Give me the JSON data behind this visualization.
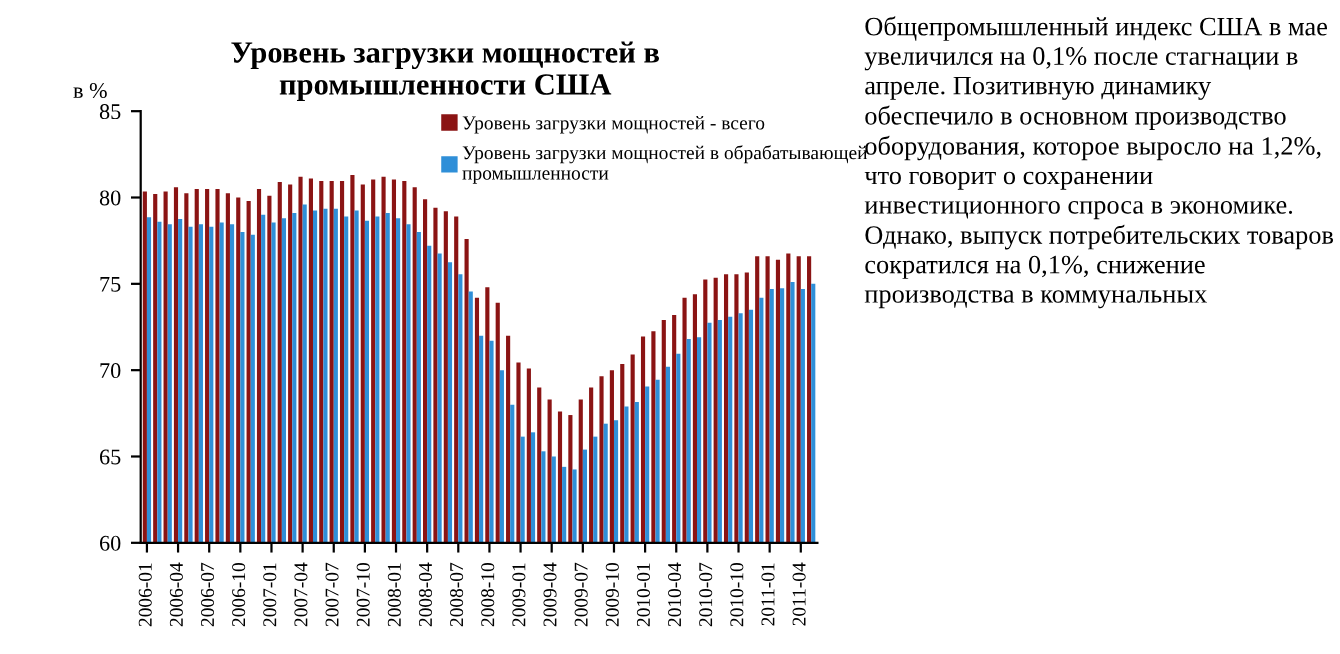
{
  "chart_data": {
    "type": "bar",
    "title": "Уровень загрузки мощностей в промышленности США",
    "ylabel": "в %",
    "categories": [
      "2006-01",
      null,
      null,
      "2006-04",
      null,
      null,
      "2006-07",
      null,
      null,
      "2006-10",
      null,
      null,
      "2007-01",
      null,
      null,
      "2007-04",
      null,
      null,
      "2007-07",
      null,
      null,
      "2007-10",
      null,
      null,
      "2008-01",
      null,
      null,
      "2008-04",
      null,
      null,
      "2008-07",
      null,
      null,
      "2008-10",
      null,
      null,
      "2009-01",
      null,
      null,
      "2009-04",
      null,
      null,
      "2009-07",
      null,
      null,
      "2009-10",
      null,
      null,
      "2010-01",
      null,
      null,
      "2010-04",
      null,
      null,
      "2010-07",
      null,
      null,
      "2010-10",
      null,
      null,
      "2011-01",
      null,
      null,
      "2011-04",
      null
    ],
    "series": [
      {
        "name": "Уровень загрузки мощностей - всего",
        "color": "#8b1414",
        "values": [
          80.35,
          80.2,
          80.35,
          80.6,
          80.25,
          80.5,
          80.5,
          80.5,
          80.25,
          80.0,
          79.8,
          80.5,
          80.1,
          80.9,
          80.75,
          81.2,
          81.1,
          80.95,
          80.95,
          80.95,
          81.3,
          80.75,
          81.05,
          81.2,
          81.05,
          80.95,
          80.6,
          79.9,
          79.4,
          79.2,
          78.9,
          77.6,
          74.2,
          74.8,
          73.9,
          72.0,
          70.45,
          70.1,
          69.0,
          68.3,
          67.6,
          67.4,
          68.3,
          69.0,
          69.65,
          70.0,
          70.35,
          70.9,
          71.95,
          72.25,
          72.9,
          73.2,
          74.2,
          74.4,
          75.25,
          75.35,
          75.55,
          75.55,
          75.65,
          76.6,
          76.6,
          76.4,
          76.75,
          76.6,
          76.6
        ]
      },
      {
        "name": "Уровень загрузки мощностей в обрабатывающей промышленности",
        "color": "#2f8fd8",
        "values": [
          78.85,
          78.6,
          78.45,
          78.75,
          78.3,
          78.45,
          78.3,
          78.55,
          78.45,
          78.0,
          77.85,
          79.0,
          78.55,
          78.8,
          79.1,
          79.6,
          79.25,
          79.35,
          79.35,
          78.9,
          79.25,
          78.65,
          78.9,
          79.1,
          78.8,
          78.45,
          78.0,
          77.2,
          76.75,
          76.25,
          75.55,
          74.55,
          72.0,
          71.7,
          70.0,
          68.0,
          66.15,
          66.4,
          65.3,
          65.0,
          64.4,
          64.25,
          65.4,
          66.15,
          66.9,
          67.1,
          67.9,
          68.15,
          69.05,
          69.45,
          70.2,
          70.95,
          71.8,
          71.9,
          72.75,
          72.9,
          73.1,
          73.3,
          73.5,
          74.2,
          74.7,
          74.75,
          75.1,
          74.7,
          75.0
        ]
      }
    ],
    "ylim": [
      60,
      85
    ],
    "yticks": [
      60,
      65,
      70,
      75,
      80,
      85
    ],
    "grid": false,
    "legend": "top right",
    "annotations": [
      "Общепромышленный индекс США в мае увеличился на 0,1% после стагнации в апреле. Позитивную динамику обеспечило в основном производство оборудования, которое выросло на 1,2%, что говорит о сохранении инвестиционного спроса в экономике. Однако, выпуск потребительских товаров сократился на 0,1%, снижение производства в коммунальных"
    ]
  }
}
